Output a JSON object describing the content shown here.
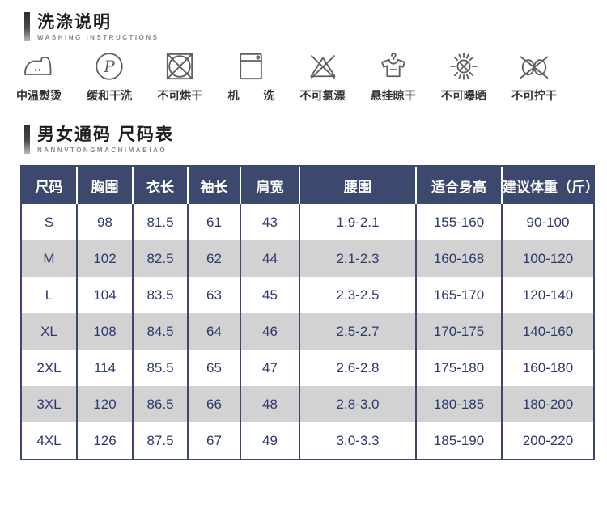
{
  "washing": {
    "title": "洗涤说明",
    "subtitle": "WASHING INSTRUCTIONS",
    "items": [
      {
        "icon": "iron-medium-icon",
        "label": "中温熨烫"
      },
      {
        "icon": "dry-clean-p-icon",
        "label": "缓和干洗"
      },
      {
        "icon": "no-tumble-dry-icon",
        "label": "不可烘干"
      },
      {
        "icon": "machine-wash-icon",
        "label": "机 洗"
      },
      {
        "icon": "no-bleach-icon",
        "label": "不可氯漂"
      },
      {
        "icon": "hang-dry-icon",
        "label": "悬挂晾干"
      },
      {
        "icon": "no-sun-icon",
        "label": "不可曝晒"
      },
      {
        "icon": "no-wring-icon",
        "label": "不可拧干"
      }
    ]
  },
  "size_chart": {
    "title": "男女通码 尺码表",
    "subtitle": "NANNVTONGMACHIMABIAO",
    "colors": {
      "header_bg": "#3c486e",
      "border": "#3c486e",
      "text": "#2c3a6d",
      "stripe": "#d2d2d2"
    },
    "columns": [
      "尺码",
      "胸围",
      "衣长",
      "袖长",
      "肩宽",
      "腰围",
      "适合身高",
      "建议体重（斤）"
    ],
    "rows": [
      [
        "S",
        "98",
        "81.5",
        "61",
        "43",
        "1.9-2.1",
        "155-160",
        "90-100"
      ],
      [
        "M",
        "102",
        "82.5",
        "62",
        "44",
        "2.1-2.3",
        "160-168",
        "100-120"
      ],
      [
        "L",
        "104",
        "83.5",
        "63",
        "45",
        "2.3-2.5",
        "165-170",
        "120-140"
      ],
      [
        "XL",
        "108",
        "84.5",
        "64",
        "46",
        "2.5-2.7",
        "170-175",
        "140-160"
      ],
      [
        "2XL",
        "114",
        "85.5",
        "65",
        "47",
        "2.6-2.8",
        "175-180",
        "160-180"
      ],
      [
        "3XL",
        "120",
        "86.5",
        "66",
        "48",
        "2.8-3.0",
        "180-185",
        "180-200"
      ],
      [
        "4XL",
        "126",
        "87.5",
        "67",
        "49",
        "3.0-3.3",
        "185-190",
        "200-220"
      ]
    ]
  }
}
